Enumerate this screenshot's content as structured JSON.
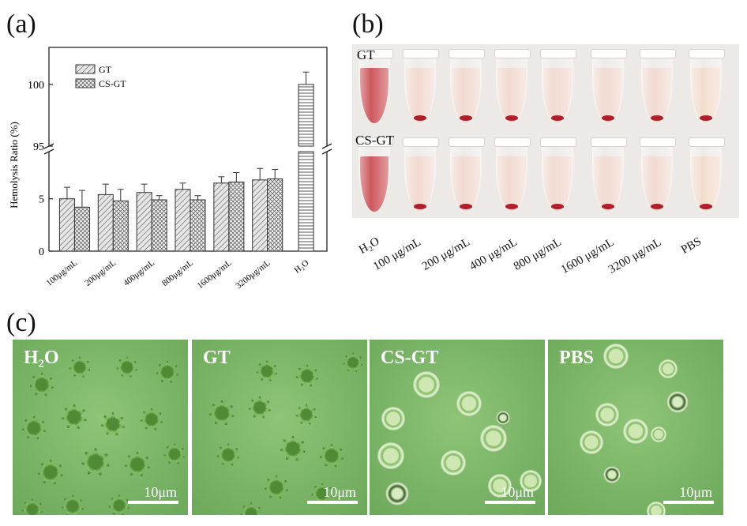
{
  "panels": {
    "a": "(a)",
    "b": "(b)",
    "c": "(c)"
  },
  "chart_data": {
    "type": "bar",
    "ylabel": "Hemolysis Ratio (%)",
    "categories": [
      "100μg/mL",
      "200μg/mL",
      "400μg/mL",
      "800μg/mL",
      "1600μg/mL",
      "3200μg/mL",
      "H₂O"
    ],
    "series": [
      {
        "name": "GT",
        "values": [
          5.0,
          5.4,
          5.6,
          5.9,
          6.5,
          6.8,
          null
        ],
        "errors": [
          1.1,
          1.0,
          0.8,
          0.6,
          0.6,
          1.1,
          null
        ]
      },
      {
        "name": "CS-GT",
        "values": [
          4.2,
          4.8,
          4.9,
          4.9,
          6.6,
          6.9,
          null
        ],
        "errors": [
          1.6,
          1.1,
          0.4,
          0.4,
          0.9,
          0.9,
          null
        ]
      },
      {
        "name": "H₂O",
        "values": [
          null,
          null,
          null,
          null,
          null,
          null,
          100
        ],
        "errors": [
          null,
          null,
          null,
          null,
          null,
          null,
          1
        ]
      }
    ],
    "ylim": [
      0,
      103
    ],
    "axis_break": [
      9.5,
      95
    ],
    "yticks": [
      "0",
      "5",
      "95",
      "100"
    ],
    "legend": "top-left",
    "grid": false
  },
  "photo_b": {
    "row_labels": [
      "GT",
      "CS-GT"
    ],
    "tube_labels": [
      "H₂O",
      "100 μg/mL",
      "200 μg/mL",
      "400 μg/mL",
      "800 μg/mL",
      "1600 μg/mL",
      "3200 μg/mL",
      "PBS"
    ],
    "colors": {
      "red_liquid": "#c8454c",
      "clear_liquid": "#f0d6cc",
      "pbs_liquid": "#f2d9c9"
    }
  },
  "micrographs": [
    {
      "label": "H₂O",
      "scale": "10μm"
    },
    {
      "label": "GT",
      "scale": "10μm"
    },
    {
      "label": "CS-GT",
      "scale": "10μm"
    },
    {
      "label": "PBS",
      "scale": "10μm"
    }
  ]
}
